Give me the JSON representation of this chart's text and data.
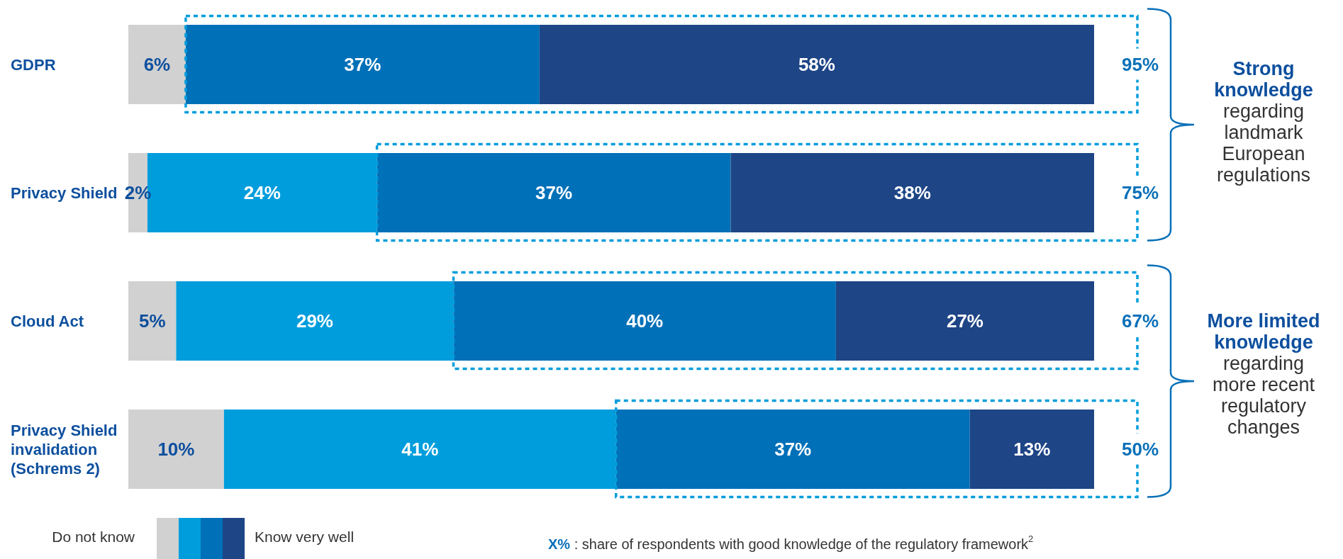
{
  "chart_data": {
    "type": "bar",
    "orientation": "horizontal",
    "stacked": true,
    "tick_labels": "y",
    "categories": [
      "GDPR",
      "Privacy Shield",
      "Cloud Act",
      "Privacy Shield invalidation (Schrems 2)"
    ],
    "series": [
      {
        "color": "#d1d1d1",
        "values": [
          6,
          2,
          5,
          10
        ],
        "value_labels": [
          "6%",
          "2%",
          "5%",
          "10%"
        ]
      },
      {
        "color": "#009ddc",
        "values": [
          null,
          24,
          29,
          41
        ],
        "value_labels": [
          null,
          "24%",
          "29%",
          "41%"
        ]
      },
      {
        "color": "#0070b8",
        "values": [
          37,
          37,
          40,
          37
        ],
        "value_labels": [
          "37%",
          "37%",
          "40%",
          "37%"
        ]
      },
      {
        "color": "#1e4586",
        "values": [
          58,
          38,
          27,
          13
        ],
        "value_labels": [
          "58%",
          "38%",
          "27%",
          "13%"
        ]
      }
    ],
    "annotations": [
      "95%",
      "75%",
      "67%",
      "50%",
      "Strong knowledge",
      "regarding landmark European regulations",
      "More limited knowledge",
      "regarding more recent regulatory changes",
      "Do not know",
      "Know very well",
      "X% : share of respondents with good knowledge of the regulatory framework$^{2}$"
    ]
  }
}
